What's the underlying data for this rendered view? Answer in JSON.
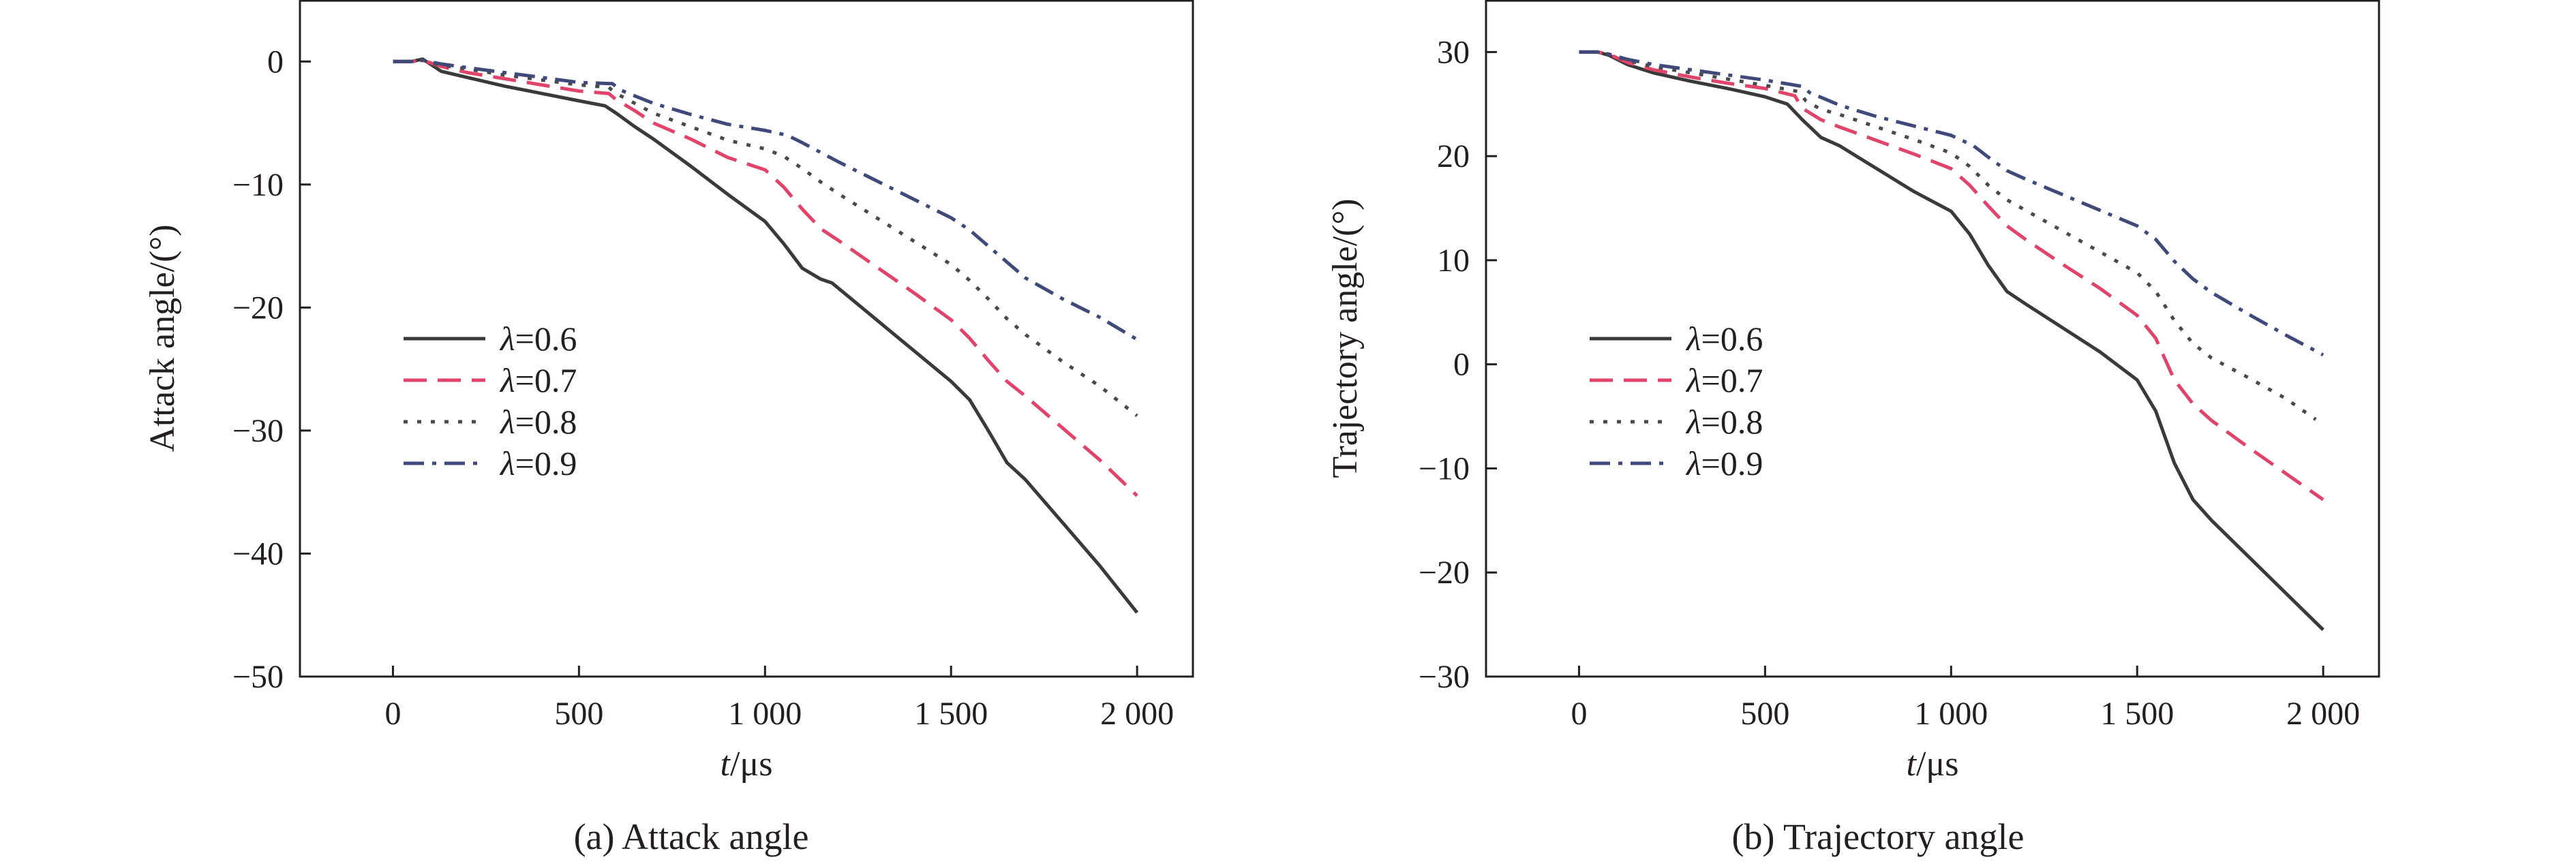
{
  "chart_data": [
    {
      "type": "line",
      "panel_caption": "(a) Attack angle",
      "xlabel_italic": "t",
      "xlabel_rest": "/μs",
      "ylabel": "Attack angle/(°)",
      "xlim": [
        -250,
        2150
      ],
      "ylim": [
        -50,
        5
      ],
      "xticks": [
        0,
        500,
        1000,
        1500,
        2000
      ],
      "xtick_labels": [
        "0",
        "500",
        "1 000",
        "1 500",
        "2 000"
      ],
      "yticks": [
        0,
        -10,
        -20,
        -30,
        -40,
        -50
      ],
      "ytick_labels": [
        "0",
        "−10",
        "−20",
        "−30",
        "−40",
        "−50"
      ],
      "legend_position": "left-middle",
      "series": [
        {
          "name": "λ=0.6",
          "legend_symbol": "λ",
          "legend_value": "=0.6",
          "color": "#3a3a3a",
          "dash": "solid",
          "x": [
            0,
            50,
            80,
            130,
            200,
            300,
            400,
            500,
            570,
            600,
            650,
            700,
            800,
            900,
            1000,
            1050,
            1100,
            1150,
            1180,
            1200,
            1300,
            1400,
            1500,
            1550,
            1600,
            1650,
            1700,
            1800,
            1900,
            2000
          ],
          "y": [
            0,
            0,
            0.2,
            -0.8,
            -1.3,
            -2.0,
            -2.6,
            -3.2,
            -3.6,
            -4.2,
            -5.3,
            -6.3,
            -8.5,
            -10.8,
            -13.0,
            -14.8,
            -16.8,
            -17.7,
            -18.0,
            -18.5,
            -21.0,
            -23.5,
            -26.0,
            -27.5,
            -30.0,
            -32.6,
            -34.0,
            -37.5,
            -41.0,
            -44.8
          ]
        },
        {
          "name": "λ=0.7",
          "legend_symbol": "λ",
          "legend_value": "=0.7",
          "color": "#e0446a",
          "dash": "dashed",
          "x": [
            0,
            50,
            80,
            130,
            200,
            300,
            400,
            500,
            580,
            600,
            650,
            700,
            800,
            900,
            1000,
            1050,
            1100,
            1150,
            1200,
            1300,
            1400,
            1500,
            1550,
            1600,
            1650,
            1700,
            1800,
            1900,
            2000
          ],
          "y": [
            0,
            0,
            0.1,
            -0.4,
            -0.9,
            -1.4,
            -1.9,
            -2.4,
            -2.6,
            -3.1,
            -4.0,
            -5.0,
            -6.3,
            -7.8,
            -8.8,
            -10.2,
            -12.0,
            -13.6,
            -14.6,
            -16.7,
            -18.8,
            -21.0,
            -22.5,
            -24.3,
            -26.0,
            -27.2,
            -29.8,
            -32.4,
            -35.3
          ]
        },
        {
          "name": "λ=0.8",
          "legend_symbol": "λ",
          "legend_value": "=0.8",
          "color": "#4a4a4a",
          "dash": "dotted",
          "x": [
            0,
            50,
            80,
            130,
            200,
            300,
            400,
            500,
            580,
            600,
            650,
            700,
            800,
            900,
            1000,
            1050,
            1100,
            1150,
            1200,
            1300,
            1400,
            1500,
            1550,
            1600,
            1650,
            1700,
            1800,
            1900,
            2000
          ],
          "y": [
            0,
            0,
            0.1,
            -0.3,
            -0.6,
            -1.1,
            -1.5,
            -1.9,
            -2.1,
            -2.6,
            -3.4,
            -4.2,
            -5.3,
            -6.4,
            -7.1,
            -7.7,
            -8.7,
            -9.8,
            -10.8,
            -12.7,
            -14.6,
            -16.5,
            -17.8,
            -19.3,
            -20.9,
            -22.2,
            -24.4,
            -26.4,
            -28.8
          ]
        },
        {
          "name": "λ=0.9",
          "legend_symbol": "λ",
          "legend_value": "=0.9",
          "color": "#3f4a7a",
          "dash": "dashdot",
          "x": [
            0,
            50,
            80,
            130,
            200,
            300,
            400,
            500,
            590,
            610,
            650,
            700,
            800,
            900,
            1000,
            1060,
            1100,
            1150,
            1200,
            1300,
            1400,
            1500,
            1550,
            1600,
            1650,
            1700,
            1800,
            1900,
            2000
          ],
          "y": [
            0,
            0,
            0.1,
            -0.2,
            -0.5,
            -0.9,
            -1.3,
            -1.7,
            -1.8,
            -2.3,
            -2.8,
            -3.4,
            -4.3,
            -5.1,
            -5.6,
            -6.0,
            -6.6,
            -7.4,
            -8.2,
            -9.7,
            -11.2,
            -12.7,
            -13.7,
            -15.0,
            -16.3,
            -17.6,
            -19.3,
            -20.8,
            -22.6
          ]
        }
      ]
    },
    {
      "type": "line",
      "panel_caption": "(b) Trajectory angle",
      "xlabel_italic": "t",
      "xlabel_rest": "/μs",
      "ylabel": "Trajectory angle/(°)",
      "xlim": [
        -250,
        2150
      ],
      "ylim": [
        -30,
        35
      ],
      "xticks": [
        0,
        500,
        1000,
        1500,
        2000
      ],
      "xtick_labels": [
        "0",
        "500",
        "1 000",
        "1 500",
        "2 000"
      ],
      "yticks": [
        30,
        20,
        10,
        0,
        -10,
        -20,
        -30
      ],
      "ytick_labels": [
        "30",
        "20",
        "10",
        "0",
        "−10",
        "−20",
        "−30"
      ],
      "legend_position": "left-middle",
      "series": [
        {
          "name": "λ=0.6",
          "legend_symbol": "λ",
          "legend_value": "=0.6",
          "color": "#3a3a3a",
          "dash": "solid",
          "x": [
            0,
            50,
            80,
            130,
            200,
            300,
            400,
            500,
            560,
            600,
            650,
            700,
            800,
            900,
            1000,
            1050,
            1100,
            1150,
            1200,
            1300,
            1400,
            1500,
            1550,
            1600,
            1650,
            1700,
            1800,
            1900,
            2000
          ],
          "y": [
            30,
            30,
            29.7,
            28.8,
            28.0,
            27.2,
            26.5,
            25.7,
            25.0,
            23.5,
            21.8,
            21.0,
            18.8,
            16.6,
            14.7,
            12.5,
            9.5,
            7.0,
            5.8,
            3.5,
            1.2,
            -1.5,
            -4.5,
            -9.5,
            -13.0,
            -15.0,
            -18.5,
            -22.0,
            -25.5
          ]
        },
        {
          "name": "λ=0.7",
          "legend_symbol": "λ",
          "legend_value": "=0.7",
          "color": "#e0446a",
          "dash": "dashed",
          "x": [
            0,
            50,
            80,
            130,
            200,
            300,
            400,
            500,
            580,
            600,
            650,
            700,
            800,
            900,
            1000,
            1050,
            1100,
            1150,
            1200,
            1300,
            1400,
            1500,
            1550,
            1600,
            1650,
            1700,
            1800,
            1900,
            2000
          ],
          "y": [
            30,
            30,
            29.8,
            29.0,
            28.3,
            27.6,
            27.0,
            26.5,
            25.8,
            24.6,
            23.5,
            22.8,
            21.5,
            20.2,
            18.8,
            17.2,
            15.2,
            13.3,
            12.0,
            9.6,
            7.3,
            4.7,
            2.5,
            -1.5,
            -3.8,
            -5.4,
            -8.0,
            -10.5,
            -13.0
          ]
        },
        {
          "name": "λ=0.8",
          "legend_symbol": "λ",
          "legend_value": "=0.8",
          "color": "#4a4a4a",
          "dash": "dotted",
          "x": [
            0,
            50,
            80,
            130,
            200,
            300,
            400,
            500,
            590,
            610,
            650,
            700,
            800,
            900,
            1000,
            1050,
            1100,
            1150,
            1200,
            1300,
            1400,
            1500,
            1550,
            1600,
            1650,
            1700,
            1800,
            1900,
            1980
          ],
          "y": [
            30,
            30,
            29.8,
            29.2,
            28.6,
            28.0,
            27.4,
            26.8,
            26.2,
            25.3,
            24.5,
            24.0,
            22.8,
            21.6,
            20.3,
            19.0,
            17.2,
            15.8,
            14.8,
            12.8,
            10.8,
            8.8,
            7.0,
            4.2,
            2.0,
            0.6,
            -1.3,
            -3.3,
            -5.3
          ]
        },
        {
          "name": "λ=0.9",
          "legend_symbol": "λ",
          "legend_value": "=0.9",
          "color": "#3f4a7a",
          "dash": "dashdot",
          "x": [
            0,
            50,
            80,
            130,
            200,
            300,
            400,
            500,
            600,
            620,
            660,
            700,
            800,
            900,
            1000,
            1060,
            1100,
            1150,
            1200,
            1300,
            1400,
            1500,
            1550,
            1600,
            1650,
            1700,
            1800,
            1900,
            2000
          ],
          "y": [
            30,
            30,
            29.8,
            29.3,
            28.8,
            28.3,
            27.8,
            27.3,
            26.7,
            26.1,
            25.5,
            24.9,
            23.8,
            22.9,
            22.0,
            21.0,
            19.9,
            18.6,
            17.8,
            16.3,
            14.8,
            13.3,
            12.0,
            9.9,
            8.2,
            6.9,
            4.8,
            2.8,
            0.9
          ]
        }
      ]
    }
  ]
}
